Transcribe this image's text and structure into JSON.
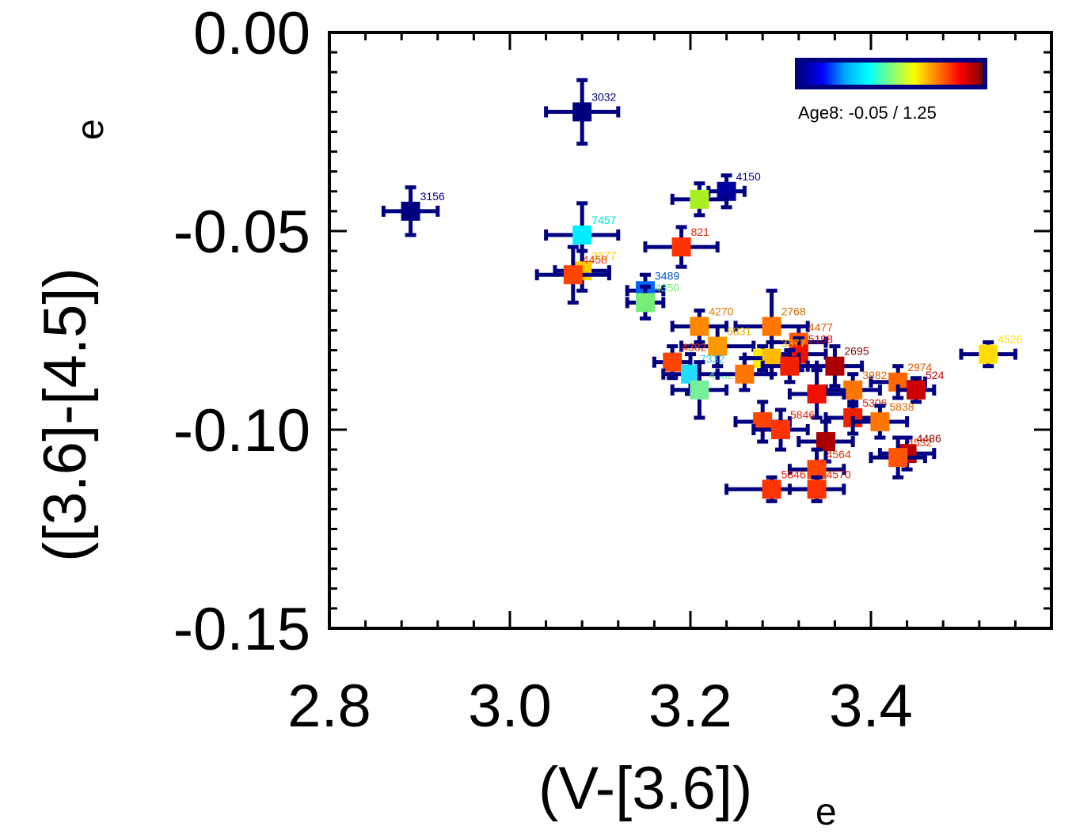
{
  "chart_data": {
    "type": "scatter",
    "title": "",
    "xlabel": "(V-[3.6])",
    "xlabel_subscript": "e",
    "ylabel": "([3.6]-[4.5])",
    "ylabel_subscript": "e",
    "xlim": [
      2.8,
      3.6
    ],
    "ylim": [
      -0.15,
      0.0
    ],
    "x_ticks": [
      2.8,
      3.0,
      3.2,
      3.4
    ],
    "x_tick_labels": [
      "2.8",
      "3.0",
      "3.2",
      "3.4"
    ],
    "y_ticks": [
      0.0,
      -0.05,
      -0.1,
      -0.15
    ],
    "y_tick_labels": [
      "0.00",
      "-0.05",
      "-0.10",
      "-0.15"
    ],
    "colorbar": {
      "label": "Age8: -0.05 / 1.25",
      "min": -0.05,
      "max": 1.25,
      "position": "top-right",
      "colors": [
        "#00007f",
        "#0000ff",
        "#00aaff",
        "#00ffff",
        "#7fff7f",
        "#ffff00",
        "#ff7f00",
        "#ff0000",
        "#7f0000"
      ]
    },
    "errorbar_color": "#000080",
    "points": [
      {
        "id": "3032",
        "x": 3.08,
        "y": -0.02,
        "xerr": 0.04,
        "yerr": 0.008,
        "color": "#00007f",
        "label_color": "#00007f"
      },
      {
        "id": "3156",
        "x": 2.89,
        "y": -0.045,
        "xerr": 0.03,
        "yerr": 0.006,
        "color": "#00007f",
        "label_color": "#00007f"
      },
      {
        "id": "4150",
        "x": 3.24,
        "y": -0.04,
        "xerr": 0.02,
        "yerr": 0.004,
        "color": "#0000a0",
        "label_color": "#0000a0"
      },
      {
        "id": "",
        "x": 3.21,
        "y": -0.042,
        "xerr": 0.03,
        "yerr": 0.004,
        "color": "#aaee22",
        "label_color": "#aaee22"
      },
      {
        "id": "7457",
        "x": 3.08,
        "y": -0.051,
        "xerr": 0.04,
        "yerr": 0.008,
        "color": "#00eeff",
        "label_color": "#00dddd"
      },
      {
        "id": "821",
        "x": 3.19,
        "y": -0.054,
        "xerr": 0.04,
        "yerr": 0.005,
        "color": "#ff3300",
        "label_color": "#ee2200"
      },
      {
        "id": "3377",
        "x": 3.08,
        "y": -0.06,
        "xerr": 0.03,
        "yerr": 0.005,
        "color": "#ffcc00",
        "label_color": "#ffcc00"
      },
      {
        "id": "4458",
        "x": 3.07,
        "y": -0.061,
        "xerr": 0.04,
        "yerr": 0.007,
        "color": "#ff4400",
        "label_color": "#ee3300"
      },
      {
        "id": "3489",
        "x": 3.15,
        "y": -0.065,
        "xerr": 0.02,
        "yerr": 0.004,
        "color": "#0066ff",
        "label_color": "#0055dd"
      },
      {
        "id": "4350",
        "x": 3.15,
        "y": -0.068,
        "xerr": 0.02,
        "yerr": 0.004,
        "color": "#77ee77",
        "label_color": "#77ee77"
      },
      {
        "id": "4270",
        "x": 3.21,
        "y": -0.074,
        "xerr": 0.03,
        "yerr": 0.004,
        "color": "#ff8800",
        "label_color": "#dd7700"
      },
      {
        "id": "2768",
        "x": 3.29,
        "y": -0.074,
        "xerr": 0.04,
        "yerr": 0.009,
        "color": "#ff7700",
        "label_color": "#dd6600"
      },
      {
        "id": "5831",
        "x": 3.23,
        "y": -0.079,
        "xerr": 0.04,
        "yerr": 0.005,
        "color": "#ff9900",
        "label_color": "#ddaa00"
      },
      {
        "id": "4477",
        "x": 3.32,
        "y": -0.078,
        "xerr": 0.03,
        "yerr": 0.004,
        "color": "#ff5500",
        "label_color": "#dd5500"
      },
      {
        "id": "4526",
        "x": 3.53,
        "y": -0.081,
        "xerr": 0.03,
        "yerr": 0.003,
        "color": "#ffdd00",
        "label_color": "#ffdd00"
      },
      {
        "id": "5198",
        "x": 3.32,
        "y": -0.081,
        "xerr": 0.03,
        "yerr": 0.004,
        "color": "#ee1100",
        "label_color": "#dd0000"
      },
      {
        "id": "2695",
        "x": 3.36,
        "y": -0.084,
        "xerr": 0.03,
        "yerr": 0.005,
        "color": "#aa0000",
        "label_color": "#880000"
      },
      {
        "id": "4382",
        "x": 3.18,
        "y": -0.083,
        "xerr": 0.02,
        "yerr": 0.004,
        "color": "#ff4400",
        "label_color": "#ee3300"
      },
      {
        "id": "7332",
        "x": 3.2,
        "y": -0.086,
        "xerr": 0.03,
        "yerr": 0.005,
        "color": "#22ddff",
        "label_color": "#22ccee"
      },
      {
        "id": "",
        "x": 3.28,
        "y": -0.082,
        "xerr": 0.02,
        "yerr": 0.003,
        "color": "#ffee00",
        "label_color": "#ffee00"
      },
      {
        "id": "3377",
        "x": 3.29,
        "y": -0.082,
        "xerr": 0.03,
        "yerr": 0.004,
        "color": "#ffbb00",
        "label_color": "#ffbb00"
      },
      {
        "id": "2974",
        "x": 3.43,
        "y": -0.088,
        "xerr": 0.03,
        "yerr": 0.004,
        "color": "#ff6600",
        "label_color": "#dd5500"
      },
      {
        "id": "524",
        "x": 3.45,
        "y": -0.09,
        "xerr": 0.02,
        "yerr": 0.003,
        "color": "#cc0000",
        "label_color": "#cc0000"
      },
      {
        "id": "4382",
        "x": 3.21,
        "y": -0.09,
        "xerr": 0.03,
        "yerr": 0.007,
        "color": "#77ee99",
        "label_color": "#77ee99"
      },
      {
        "id": "",
        "x": 3.26,
        "y": -0.086,
        "xerr": 0.03,
        "yerr": 0.004,
        "color": "#ff7700",
        "label_color": "#dd6600"
      },
      {
        "id": "",
        "x": 3.31,
        "y": -0.084,
        "xerr": 0.03,
        "yerr": 0.004,
        "color": "#ee2200",
        "label_color": "#dd2200"
      },
      {
        "id": "3982",
        "x": 3.38,
        "y": -0.09,
        "xerr": 0.03,
        "yerr": 0.004,
        "color": "#ff7700",
        "label_color": "#dd6600"
      },
      {
        "id": "",
        "x": 3.34,
        "y": -0.091,
        "xerr": 0.03,
        "yerr": 0.006,
        "color": "#ee1100",
        "label_color": "#dd0000"
      },
      {
        "id": "5306",
        "x": 3.38,
        "y": -0.097,
        "xerr": 0.03,
        "yerr": 0.004,
        "color": "#ee2200",
        "label_color": "#dd2200"
      },
      {
        "id": "5838",
        "x": 3.41,
        "y": -0.098,
        "xerr": 0.03,
        "yerr": 0.004,
        "color": "#ff7700",
        "label_color": "#dd6600"
      },
      {
        "id": "",
        "x": 3.28,
        "y": -0.098,
        "xerr": 0.03,
        "yerr": 0.005,
        "color": "#ff4400",
        "label_color": "#ee3300"
      },
      {
        "id": "5846",
        "x": 3.3,
        "y": -0.1,
        "xerr": 0.03,
        "yerr": 0.005,
        "color": "#ff3300",
        "label_color": "#ee2200"
      },
      {
        "id": "4486",
        "x": 3.44,
        "y": -0.106,
        "xerr": 0.03,
        "yerr": 0.004,
        "color": "#bb0000",
        "label_color": "#880000"
      },
      {
        "id": "4532",
        "x": 3.43,
        "y": -0.107,
        "xerr": 0.03,
        "yerr": 0.005,
        "color": "#ff5500",
        "label_color": "#dd3300"
      },
      {
        "id": "",
        "x": 3.35,
        "y": -0.103,
        "xerr": 0.03,
        "yerr": 0.005,
        "color": "#aa0000",
        "label_color": "#880000"
      },
      {
        "id": "4564",
        "x": 3.34,
        "y": -0.11,
        "xerr": 0.03,
        "yerr": 0.005,
        "color": "#ff4400",
        "label_color": "#dd3300"
      },
      {
        "id": "5846",
        "x": 3.29,
        "y": -0.115,
        "xerr": 0.05,
        "yerr": 0.003,
        "color": "#ff3300",
        "label_color": "#dd2200"
      },
      {
        "id": "4570",
        "x": 3.34,
        "y": -0.115,
        "xerr": 0.03,
        "yerr": 0.003,
        "color": "#ff3300",
        "label_color": "#dd2200"
      }
    ]
  }
}
